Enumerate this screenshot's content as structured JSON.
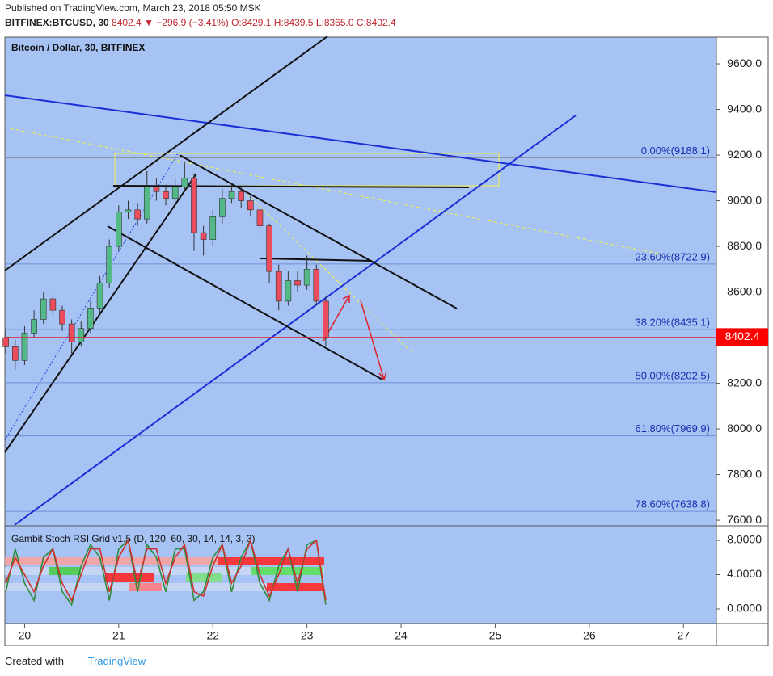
{
  "header": {
    "published": "Published on TradingView.com, March 23, 2018 05:50 MSK",
    "symbol": "BITFINEX:BTCUSD, 30",
    "last": "8402.4",
    "arrow": "▼",
    "change": "−296.9 (−3.41%)",
    "open": "O:8429.1",
    "high": "H:8439.5",
    "low": "L:8365.0",
    "close": "C:8402.4"
  },
  "chart_data": [
    {
      "type": "candlestick",
      "title": "Bitcoin / Dollar, 30, BITFINEX",
      "x": [
        19.8,
        19.9,
        20.0,
        20.1,
        20.2,
        20.3,
        20.4,
        20.5,
        20.6,
        20.7,
        20.8,
        20.9,
        21.0,
        21.1,
        21.2,
        21.3,
        21.4,
        21.5,
        21.6,
        21.7,
        21.8,
        21.9,
        22.0,
        22.1,
        22.2,
        22.3,
        22.4,
        22.5,
        22.6,
        22.7,
        22.8,
        22.9,
        23.0,
        23.1,
        23.2
      ],
      "open": [
        8400,
        8360,
        8300,
        8420,
        8480,
        8570,
        8520,
        8460,
        8380,
        8440,
        8530,
        8640,
        8800,
        8950,
        8960,
        8920,
        9060,
        9040,
        9010,
        9060,
        9100,
        8860,
        8830,
        8930,
        9010,
        9040,
        9000,
        8960,
        8890,
        8690,
        8560,
        8650,
        8630,
        8700,
        8560
      ],
      "high": [
        8440,
        8390,
        8450,
        8520,
        8600,
        8590,
        8540,
        8480,
        8470,
        8560,
        8670,
        8830,
        8980,
        9000,
        8990,
        9130,
        9100,
        9070,
        9100,
        9170,
        9120,
        8890,
        8960,
        9050,
        9080,
        9060,
        9020,
        8990,
        8900,
        8720,
        8690,
        8690,
        8760,
        8720,
        8580
      ],
      "low": [
        8330,
        8260,
        8280,
        8400,
        8460,
        8490,
        8430,
        8330,
        8360,
        8420,
        8510,
        8620,
        8780,
        8920,
        8890,
        8900,
        9000,
        8980,
        8990,
        9040,
        8780,
        8760,
        8800,
        8900,
        8990,
        8970,
        8930,
        8860,
        8640,
        8520,
        8540,
        8600,
        8610,
        8540,
        8365
      ],
      "close": [
        8360,
        8300,
        8420,
        8480,
        8570,
        8520,
        8460,
        8380,
        8440,
        8530,
        8640,
        8800,
        8950,
        8960,
        8920,
        9060,
        9040,
        9010,
        9060,
        9100,
        8860,
        8830,
        8930,
        9010,
        9040,
        9000,
        8960,
        8890,
        8690,
        8560,
        8650,
        8630,
        8700,
        8560,
        8402.4
      ],
      "up_color": "#53b987",
      "down_color": "#eb4d5c",
      "last_price": 8402.4,
      "xlim": [
        19.79,
        27.35
      ],
      "xticks": [
        20,
        21,
        22,
        23,
        24,
        25,
        26,
        27
      ],
      "ylim": [
        7579,
        9717
      ],
      "yticks": [
        {
          "value": 7600,
          "label": "7600.0"
        },
        {
          "value": 7800,
          "label": "7800.0"
        },
        {
          "value": 8000,
          "label": "8000.0"
        },
        {
          "value": 8200,
          "label": "8200.0"
        },
        {
          "value": 8400,
          "label": "8400.0"
        },
        {
          "value": 8600,
          "label": "8600.0"
        },
        {
          "value": 8800,
          "label": "8800.0"
        },
        {
          "value": 9000,
          "label": "9000.0"
        },
        {
          "value": 9200,
          "label": "9200.0"
        },
        {
          "value": 9400,
          "label": "9400.0"
        },
        {
          "value": 9600,
          "label": "9600.0"
        }
      ],
      "fib_levels": [
        {
          "value": 9188.1,
          "label": "0.00%(9188.1)"
        },
        {
          "value": 8722.9,
          "label": "23.60%(8722.9)"
        },
        {
          "value": 8435.1,
          "label": "38.20%(8435.1)"
        },
        {
          "value": 8202.5,
          "label": "50.00%(8202.5)"
        },
        {
          "value": 7969.9,
          "label": "61.80%(7969.9)"
        },
        {
          "value": 7638.8,
          "label": "78.60%(7638.8)"
        }
      ]
    },
    {
      "type": "line",
      "title": "Gambit Stoch RSI Grid v1.5 (D, 120, 60, 30, 14, 14, 3, 3)",
      "x": [
        19.8,
        19.9,
        20.0,
        20.1,
        20.2,
        20.3,
        20.4,
        20.5,
        20.6,
        20.7,
        20.8,
        20.9,
        21.0,
        21.1,
        21.2,
        21.3,
        21.4,
        21.5,
        21.6,
        21.7,
        21.8,
        21.9,
        22.0,
        22.1,
        22.2,
        22.3,
        22.4,
        22.5,
        22.6,
        22.7,
        22.8,
        22.9,
        23.0,
        23.1,
        23.2
      ],
      "series": [
        {
          "color": "#2e8b3a",
          "values": [
            2,
            7,
            3,
            1,
            6,
            7,
            2,
            0.5,
            5,
            7.5,
            6,
            1,
            7,
            8,
            2,
            7.5,
            6,
            2,
            7,
            7,
            1,
            2,
            6,
            7.5,
            2,
            6,
            8,
            3,
            1,
            5,
            7,
            2,
            7.5,
            8,
            0.5
          ]
        },
        {
          "color": "#d0302f",
          "values": [
            3,
            6,
            4,
            2,
            5,
            7,
            3,
            1,
            4,
            7,
            7,
            2,
            6,
            8,
            3,
            7,
            7,
            3,
            6,
            7.5,
            2,
            1.5,
            5,
            7.5,
            3,
            5,
            8,
            4,
            1.5,
            4,
            7,
            3,
            7,
            8,
            1
          ]
        }
      ],
      "ylim": [
        -1.7,
        9.6
      ],
      "yticks": [
        {
          "value": 0,
          "label": "0.0000"
        },
        {
          "value": 4,
          "label": "4.0000"
        },
        {
          "value": 8,
          "label": "8.0000"
        }
      ]
    }
  ],
  "footer": {
    "created": "Created with",
    "brand": "TradingView"
  }
}
